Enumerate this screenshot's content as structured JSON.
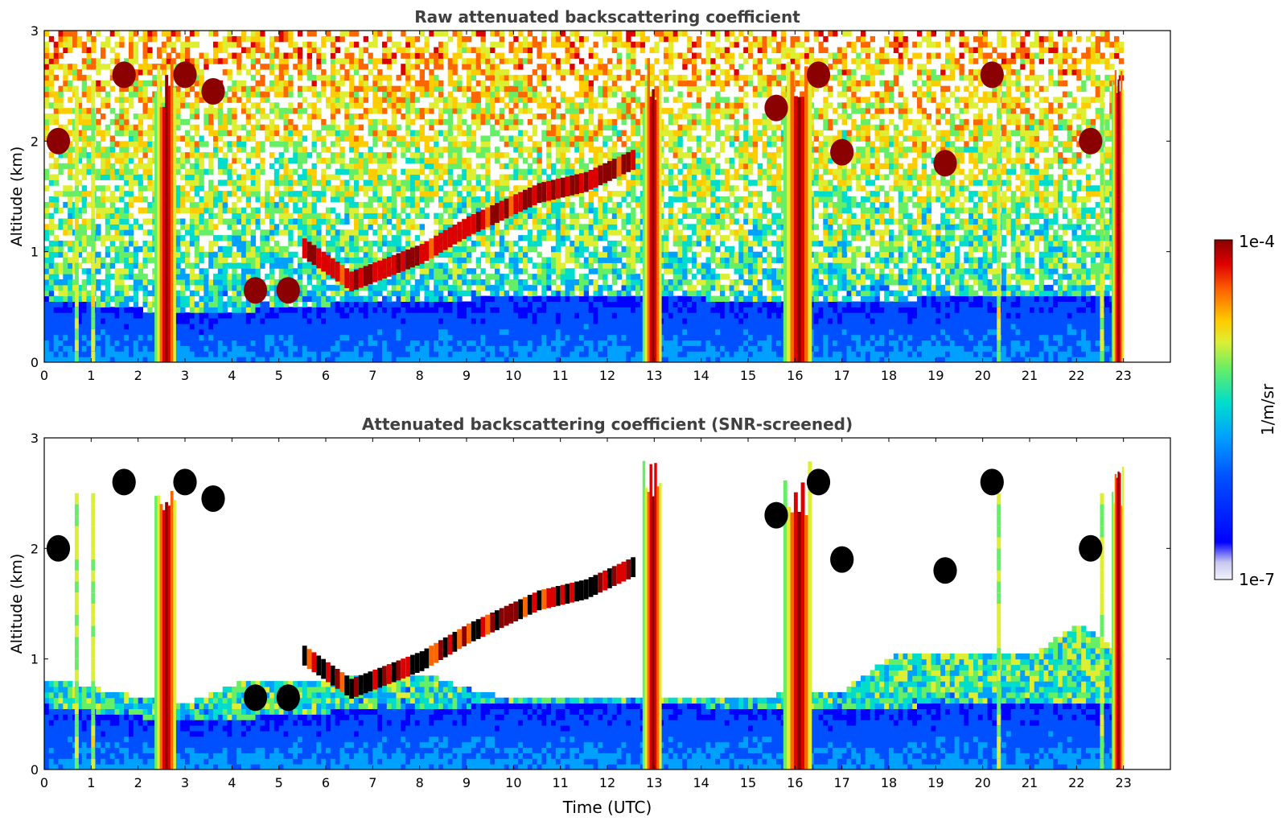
{
  "chart_data": [
    {
      "type": "heatmap",
      "title": "Raw attenuated backscattering coefficient",
      "xlabel": "",
      "ylabel": "Altitude (km)",
      "xlim": [
        0,
        24
      ],
      "ylim": [
        0,
        3
      ],
      "xticks": [
        0,
        1,
        2,
        3,
        4,
        5,
        6,
        7,
        8,
        9,
        10,
        11,
        12,
        13,
        14,
        15,
        16,
        17,
        18,
        19,
        20,
        21,
        22,
        23
      ],
      "yticks": [
        0,
        1,
        2,
        3
      ],
      "data_extent_hours": [
        0,
        23
      ],
      "screened": false,
      "features": {
        "precipitation_columns_utc": [
          [
            2.35,
            2.8
          ],
          [
            12.75,
            13.15
          ],
          [
            15.75,
            16.35
          ],
          [
            22.75,
            23.0
          ]
        ],
        "thin_columns_utc": [
          0.65,
          1.0,
          20.3,
          22.5
        ],
        "rising_cloud_layer": [
          [
            5.5,
            1.0
          ],
          [
            6.5,
            0.7
          ],
          [
            8.0,
            0.95
          ],
          [
            9.0,
            1.2
          ],
          [
            10.5,
            1.5
          ],
          [
            11.5,
            1.6
          ],
          [
            12.5,
            1.8
          ]
        ],
        "elevated_cloud_patches": [
          [
            0.3,
            2.0
          ],
          [
            1.7,
            2.6
          ],
          [
            3.0,
            2.6
          ],
          [
            3.6,
            2.45
          ],
          [
            4.5,
            0.65
          ],
          [
            5.2,
            0.65
          ],
          [
            15.6,
            2.3
          ],
          [
            16.5,
            2.6
          ],
          [
            17.0,
            1.9
          ],
          [
            19.2,
            1.8
          ],
          [
            20.2,
            2.6
          ],
          [
            22.3,
            2.0
          ]
        ],
        "boundary_layer_top_km": [
          [
            0,
            0.55
          ],
          [
            3,
            0.4
          ],
          [
            6,
            0.5
          ],
          [
            9,
            0.55
          ],
          [
            12,
            0.55
          ],
          [
            14,
            0.55
          ],
          [
            17,
            0.5
          ],
          [
            20,
            0.6
          ],
          [
            22,
            0.6
          ],
          [
            23,
            0.55
          ]
        ]
      }
    },
    {
      "type": "heatmap",
      "title": "Attenuated backscattering coefficient (SNR-screened)",
      "xlabel": "Time (UTC)",
      "ylabel": "Altitude (km)",
      "xlim": [
        0,
        24
      ],
      "ylim": [
        0,
        3
      ],
      "xticks": [
        0,
        1,
        2,
        3,
        4,
        5,
        6,
        7,
        8,
        9,
        10,
        11,
        12,
        13,
        14,
        15,
        16,
        17,
        18,
        19,
        20,
        21,
        22,
        23
      ],
      "yticks": [
        0,
        1,
        2,
        3
      ],
      "data_extent_hours": [
        0,
        23
      ],
      "screened": true,
      "features": {
        "screened_top_km": [
          [
            0,
            0.8
          ],
          [
            2.9,
            0.55
          ],
          [
            4.0,
            0.75
          ],
          [
            6.0,
            0.8
          ],
          [
            8.0,
            0.85
          ],
          [
            9.0,
            0.7
          ],
          [
            10.0,
            0.6
          ],
          [
            12.0,
            0.6
          ],
          [
            14.0,
            0.6
          ],
          [
            17.0,
            0.7
          ],
          [
            18.0,
            1.0
          ],
          [
            20.0,
            1.05
          ],
          [
            21.0,
            1.0
          ],
          [
            22.0,
            1.3
          ],
          [
            23.0,
            1.0
          ]
        ]
      }
    }
  ],
  "colorbar": {
    "label": "1/m/sr",
    "max_label": "1e-4",
    "min_label": "1e-7",
    "scale": "log",
    "range": [
      1e-07,
      0.0001
    ],
    "colormap": [
      "#f2f2fa",
      "#c8c8f0",
      "#0000ff",
      "#0050ff",
      "#00a0ff",
      "#00ddcc",
      "#66ee66",
      "#ddee33",
      "#ffcc00",
      "#ff6600",
      "#dd0000",
      "#8b0000"
    ]
  }
}
